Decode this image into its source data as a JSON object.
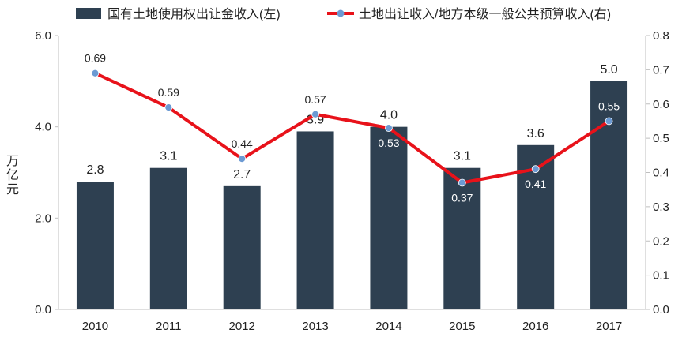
{
  "chart_data": {
    "type": "bar+line",
    "categories": [
      "2010",
      "2011",
      "2012",
      "2013",
      "2014",
      "2015",
      "2016",
      "2017"
    ],
    "series": [
      {
        "name": "国有土地使用权出让金收入(左)",
        "type": "bar",
        "axis": "left",
        "color": "#2e4051",
        "values": [
          2.8,
          3.1,
          2.7,
          3.9,
          4.0,
          3.1,
          3.6,
          5.0
        ],
        "labels": [
          "2.8",
          "3.1",
          "2.7",
          "3.9",
          "4.0",
          "3.1",
          "3.6",
          "5.0"
        ]
      },
      {
        "name": "土地出让收入/地方本级一般公共预算收入(右)",
        "type": "line",
        "axis": "right",
        "color": "#e8121a",
        "marker_color": "#6c9ad3",
        "values": [
          0.69,
          0.59,
          0.44,
          0.57,
          0.53,
          0.37,
          0.41,
          0.55
        ],
        "labels": [
          "0.69",
          "0.59",
          "0.44",
          "0.57",
          "0.53",
          "0.37",
          "0.41",
          "0.55"
        ]
      }
    ],
    "left_axis": {
      "label": "万亿元",
      "ylim": [
        0,
        6
      ],
      "ticks": [
        0,
        2,
        4,
        6
      ],
      "tick_labels": [
        "0.0",
        "2.0",
        "4.0",
        "6.0"
      ]
    },
    "right_axis": {
      "ylim": [
        0,
        0.8
      ],
      "ticks": [
        0,
        0.1,
        0.2,
        0.3,
        0.4,
        0.5,
        0.6,
        0.7,
        0.8
      ],
      "tick_labels": [
        "0.0",
        "0.1",
        "0.2",
        "0.3",
        "0.4",
        "0.5",
        "0.6",
        "0.7",
        "0.8"
      ]
    },
    "legend_position": "top",
    "grid": false
  }
}
